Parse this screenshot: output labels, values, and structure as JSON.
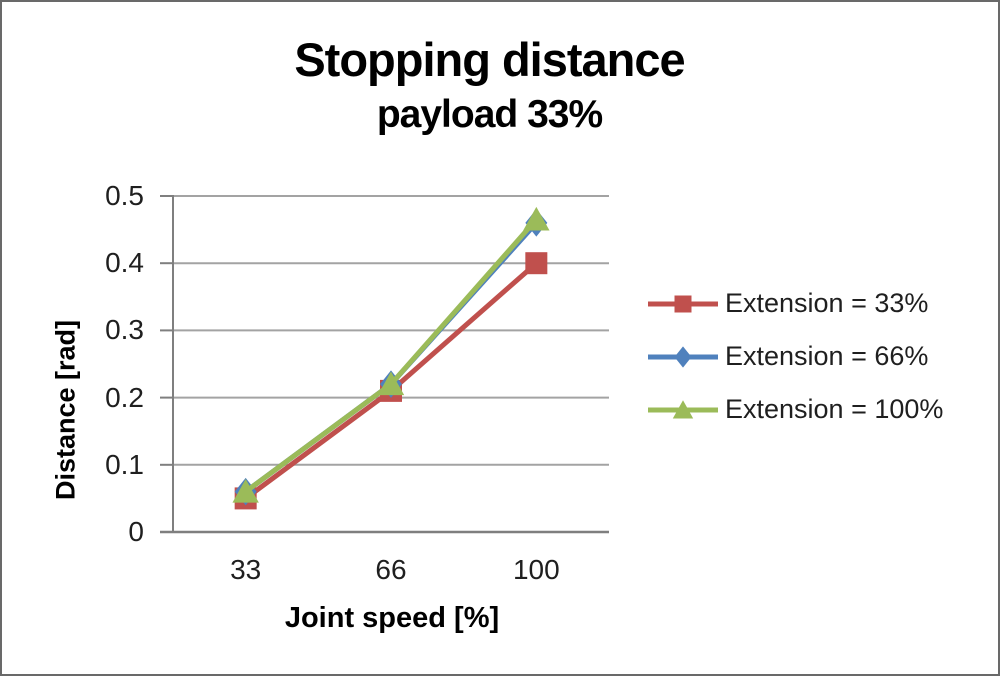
{
  "chart_data": {
    "type": "line",
    "title": "Stopping distance",
    "subtitle": "payload 33%",
    "xlabel": "Joint speed [%]",
    "ylabel": "Distance [rad]",
    "categories": [
      "33",
      "66",
      "100"
    ],
    "series": [
      {
        "name": "Extension = 33%",
        "values": [
          0.05,
          0.21,
          0.4
        ],
        "color": "#C0504D",
        "marker": "square"
      },
      {
        "name": "Extension = 66%",
        "values": [
          0.06,
          0.22,
          0.46
        ],
        "color": "#4F81BD",
        "marker": "diamond"
      },
      {
        "name": "Extension = 100%",
        "values": [
          0.06,
          0.22,
          0.465
        ],
        "color": "#9BBB59",
        "marker": "triangle"
      }
    ],
    "ylim": [
      0,
      0.5
    ],
    "ytick_values": [
      0,
      0.1,
      0.2,
      0.3,
      0.4,
      0.5
    ],
    "yticks": [
      "0",
      "0.1",
      "0.2",
      "0.3",
      "0.4",
      "0.5"
    ],
    "grid": "horizontal-major",
    "legend_position": "right",
    "axis_color": "#7f7f7f",
    "grid_color": "#a3a3a3",
    "text_color": "#1f1f1f",
    "background": "#ffffff"
  }
}
